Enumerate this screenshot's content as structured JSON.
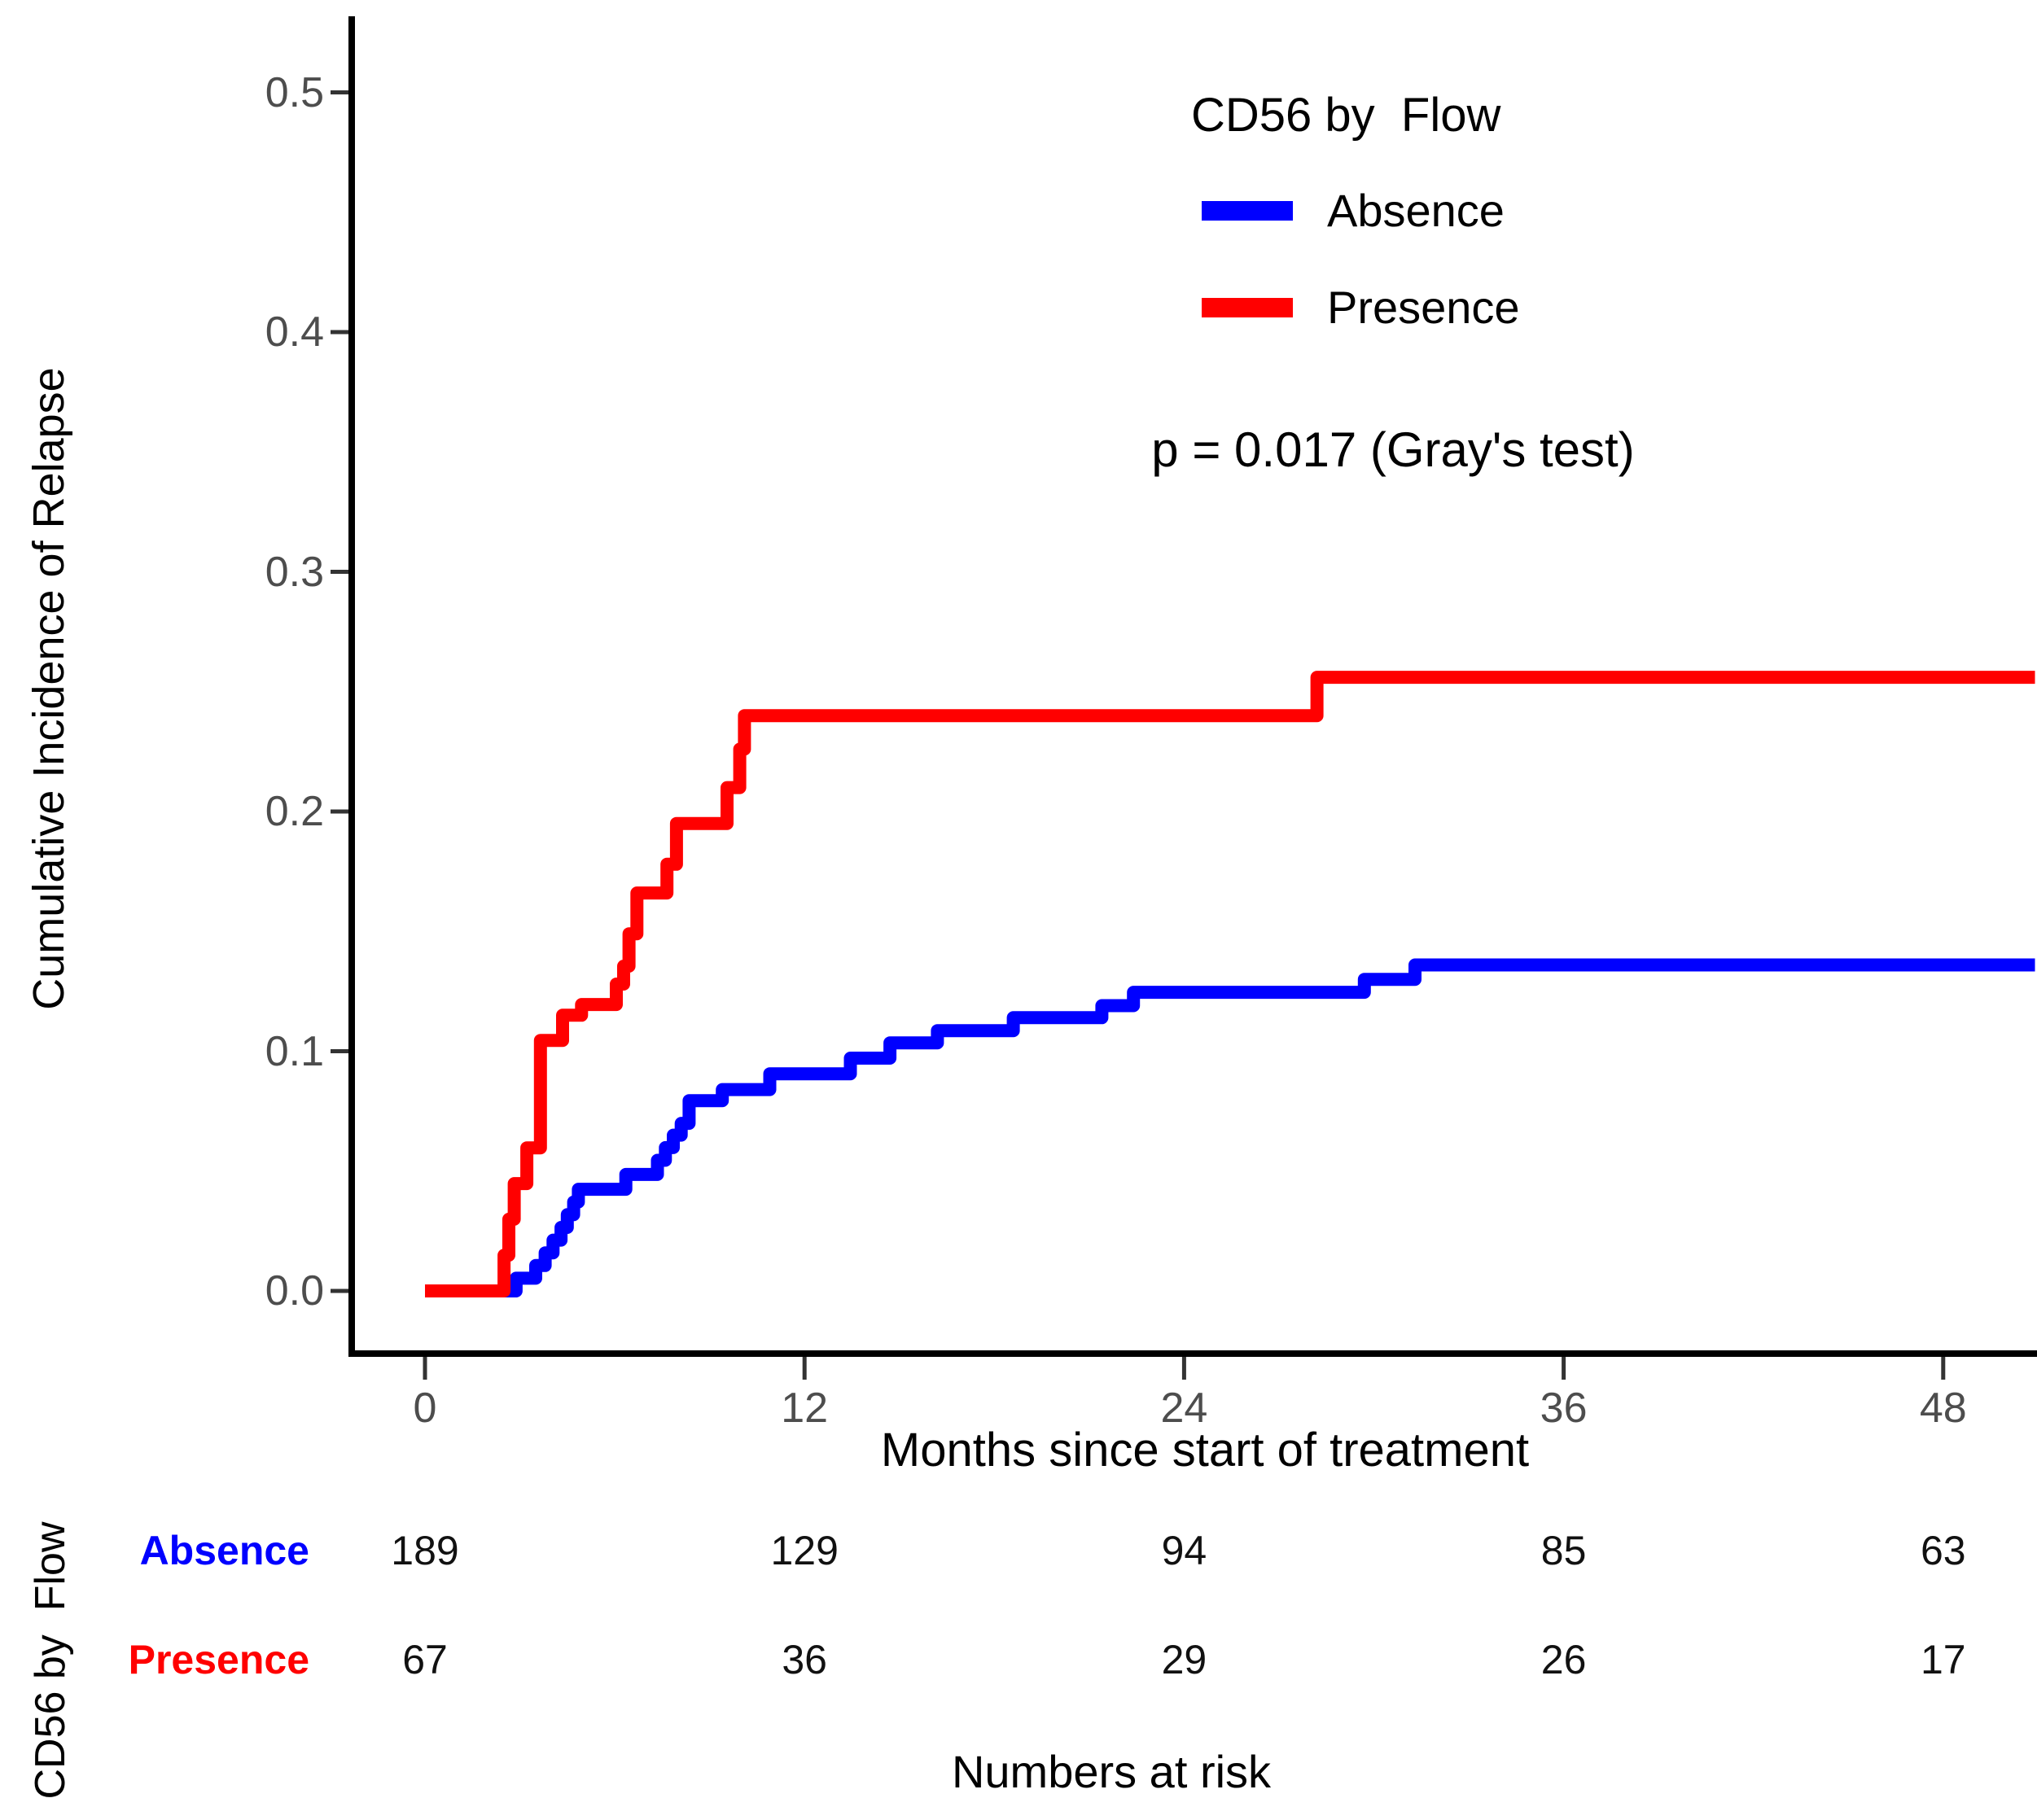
{
  "accent_colors": {
    "absence_blue": "#0000ff",
    "presence_red": "#ff0000",
    "axis_text_grey": "#4d4d4d",
    "spine_black": "#000000"
  },
  "legend": {
    "title": "CD56 by  Flow"
  },
  "annotation": {
    "p_value_text": "p = 0.017 (Gray's test)"
  },
  "risk_table": {
    "side_label": "CD56 by  Flow",
    "caption": "Numbers at risk",
    "time_points": [
      0,
      12,
      24,
      36,
      48
    ],
    "rows": [
      {
        "name": "Absence",
        "color": "#0000ff",
        "counts": [
          "189",
          "129",
          "94",
          "85",
          "63"
        ]
      },
      {
        "name": "Presence",
        "color": "#ff0000",
        "counts": [
          "67",
          "36",
          "29",
          "26",
          "17"
        ]
      }
    ]
  },
  "chart_data": {
    "type": "line",
    "subtype": "step-cumulative-incidence",
    "title": "",
    "xlabel": "Months since start of treatment",
    "ylabel": "Cumulative Incidence of Relapse",
    "x_ticks": [
      0,
      12,
      24,
      36,
      48
    ],
    "x_tick_labels": [
      "0",
      "12",
      "24",
      "36",
      "48"
    ],
    "y_ticks": [
      0.0,
      0.1,
      0.2,
      0.3,
      0.4,
      0.5
    ],
    "y_tick_labels": [
      "0.0",
      "0.1",
      "0.2",
      "0.3",
      "0.4",
      "0.5"
    ],
    "xlim": [
      0,
      50.9
    ],
    "ylim": [
      0,
      0.52
    ],
    "grid": "off",
    "legend_position": "inside-top-right",
    "annotation": "p = 0.017 (Gray's test)",
    "series": [
      {
        "name": "Absence",
        "color": "#0000ff",
        "x_end": 50.9,
        "events": [
          [
            0,
            0
          ],
          [
            2.88,
            0.0053
          ],
          [
            3.5,
            0.0106
          ],
          [
            3.8,
            0.0159
          ],
          [
            4.05,
            0.0212
          ],
          [
            4.3,
            0.0265
          ],
          [
            4.5,
            0.0318
          ],
          [
            4.7,
            0.0371
          ],
          [
            4.85,
            0.0424
          ],
          [
            6.35,
            0.0486
          ],
          [
            7.35,
            0.0545
          ],
          [
            7.6,
            0.0598
          ],
          [
            7.85,
            0.065
          ],
          [
            8.1,
            0.0699
          ],
          [
            8.35,
            0.0794
          ],
          [
            9.4,
            0.084
          ],
          [
            10.9,
            0.0906
          ],
          [
            13.45,
            0.0971
          ],
          [
            14.7,
            0.1035
          ],
          [
            16.2,
            0.1086
          ],
          [
            18.6,
            0.114
          ],
          [
            21.4,
            0.119
          ],
          [
            22.4,
            0.1246
          ],
          [
            29.7,
            0.13
          ],
          [
            31.3,
            0.136
          ]
        ]
      },
      {
        "name": "Presence",
        "color": "#ff0000",
        "x_end": 50.9,
        "events": [
          [
            0,
            0
          ],
          [
            2.5,
            0.0149
          ],
          [
            2.65,
            0.0299
          ],
          [
            2.82,
            0.0448
          ],
          [
            3.22,
            0.0597
          ],
          [
            3.65,
            0.1045
          ],
          [
            4.35,
            0.115
          ],
          [
            4.95,
            0.1195
          ],
          [
            6.05,
            0.128
          ],
          [
            6.28,
            0.1355
          ],
          [
            6.45,
            0.149
          ],
          [
            6.7,
            0.166
          ],
          [
            7.65,
            0.178
          ],
          [
            7.95,
            0.195
          ],
          [
            9.55,
            0.21
          ],
          [
            9.95,
            0.226
          ],
          [
            10.1,
            0.24
          ],
          [
            28.2,
            0.256
          ]
        ]
      }
    ]
  }
}
